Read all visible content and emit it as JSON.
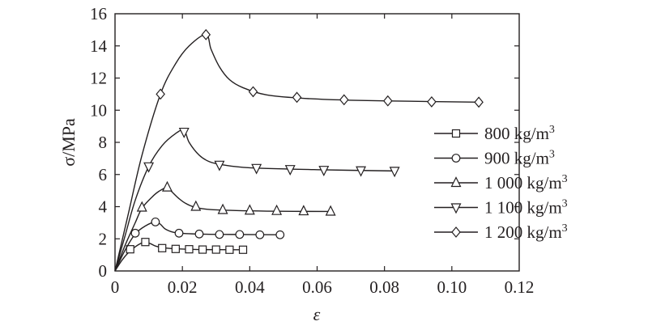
{
  "chart_data": {
    "type": "line",
    "xlabel": "ε",
    "ylabel": "σ/MPa",
    "xlim": [
      0,
      0.12
    ],
    "ylim": [
      0,
      16
    ],
    "xticks": [
      0,
      0.02,
      0.04,
      0.06,
      0.08,
      0.1,
      0.12
    ],
    "xtick_labels": [
      "0",
      "0.02",
      "0.04",
      "0.06",
      "0.08",
      "0.10",
      "0.12"
    ],
    "yticks": [
      0,
      2,
      4,
      6,
      8,
      10,
      12,
      14,
      16
    ],
    "ytick_labels": [
      "0",
      "2",
      "4",
      "6",
      "8",
      "10",
      "12",
      "14",
      "16"
    ],
    "grid": false,
    "legend_position": "right",
    "series": [
      {
        "name": "800 kg/m",
        "superscript": "3",
        "marker": "square",
        "curve": [
          [
            0,
            0
          ],
          [
            0.002,
            0.65
          ],
          [
            0.004,
            1.15
          ],
          [
            0.006,
            1.5
          ],
          [
            0.0075,
            1.7
          ],
          [
            0.009,
            1.8
          ],
          [
            0.0105,
            1.7
          ],
          [
            0.012,
            1.55
          ],
          [
            0.014,
            1.45
          ],
          [
            0.018,
            1.38
          ],
          [
            0.025,
            1.33
          ],
          [
            0.038,
            1.32
          ]
        ],
        "markers": [
          [
            0.0045,
            1.35
          ],
          [
            0.009,
            1.8
          ],
          [
            0.014,
            1.42
          ],
          [
            0.018,
            1.37
          ],
          [
            0.022,
            1.35
          ],
          [
            0.026,
            1.33
          ],
          [
            0.03,
            1.33
          ],
          [
            0.034,
            1.32
          ],
          [
            0.038,
            1.32
          ]
        ]
      },
      {
        "name": "900 kg/m",
        "superscript": "3",
        "marker": "circle",
        "curve": [
          [
            0,
            0
          ],
          [
            0.003,
            1.3
          ],
          [
            0.006,
            2.3
          ],
          [
            0.009,
            2.8
          ],
          [
            0.012,
            3.05
          ],
          [
            0.0135,
            2.9
          ],
          [
            0.015,
            2.6
          ],
          [
            0.018,
            2.38
          ],
          [
            0.024,
            2.3
          ],
          [
            0.035,
            2.27
          ],
          [
            0.05,
            2.25
          ]
        ],
        "markers": [
          [
            0.006,
            2.35
          ],
          [
            0.012,
            3.05
          ],
          [
            0.019,
            2.35
          ],
          [
            0.025,
            2.3
          ],
          [
            0.031,
            2.27
          ],
          [
            0.037,
            2.27
          ],
          [
            0.043,
            2.25
          ],
          [
            0.049,
            2.25
          ]
        ]
      },
      {
        "name": "1 000 kg/m",
        "superscript": "3",
        "marker": "triangle-up",
        "curve": [
          [
            0,
            0
          ],
          [
            0.003,
            1.6
          ],
          [
            0.006,
            3.0
          ],
          [
            0.008,
            3.9
          ],
          [
            0.011,
            4.6
          ],
          [
            0.013,
            4.95
          ],
          [
            0.0155,
            5.2
          ],
          [
            0.017,
            4.9
          ],
          [
            0.019,
            4.5
          ],
          [
            0.021,
            4.2
          ],
          [
            0.024,
            3.95
          ],
          [
            0.03,
            3.8
          ],
          [
            0.045,
            3.72
          ],
          [
            0.064,
            3.7
          ]
        ],
        "markers": [
          [
            0.008,
            3.95
          ],
          [
            0.0155,
            5.2
          ],
          [
            0.024,
            4.0
          ],
          [
            0.032,
            3.8
          ],
          [
            0.04,
            3.76
          ],
          [
            0.048,
            3.74
          ],
          [
            0.056,
            3.72
          ],
          [
            0.064,
            3.7
          ]
        ]
      },
      {
        "name": "1 100 kg/m",
        "superscript": "3",
        "marker": "triangle-down",
        "curve": [
          [
            0,
            0
          ],
          [
            0.003,
            2.2
          ],
          [
            0.006,
            4.4
          ],
          [
            0.01,
            6.5
          ],
          [
            0.014,
            7.8
          ],
          [
            0.018,
            8.55
          ],
          [
            0.0205,
            8.75
          ],
          [
            0.022,
            8.0
          ],
          [
            0.025,
            7.2
          ],
          [
            0.028,
            6.8
          ],
          [
            0.032,
            6.6
          ],
          [
            0.04,
            6.42
          ],
          [
            0.06,
            6.3
          ],
          [
            0.083,
            6.22
          ]
        ],
        "markers": [
          [
            0.01,
            6.5
          ],
          [
            0.0205,
            8.65
          ],
          [
            0.031,
            6.6
          ],
          [
            0.042,
            6.4
          ],
          [
            0.052,
            6.33
          ],
          [
            0.062,
            6.28
          ],
          [
            0.073,
            6.25
          ],
          [
            0.083,
            6.22
          ]
        ]
      },
      {
        "name": "1 200 kg/m",
        "superscript": "3",
        "marker": "diamond",
        "curve": [
          [
            0,
            0
          ],
          [
            0.004,
            3.6
          ],
          [
            0.008,
            7.2
          ],
          [
            0.0135,
            11.0
          ],
          [
            0.018,
            12.9
          ],
          [
            0.022,
            14.0
          ],
          [
            0.027,
            14.7
          ],
          [
            0.0285,
            13.8
          ],
          [
            0.031,
            12.7
          ],
          [
            0.034,
            11.9
          ],
          [
            0.038,
            11.4
          ],
          [
            0.045,
            10.95
          ],
          [
            0.055,
            10.75
          ],
          [
            0.07,
            10.62
          ],
          [
            0.09,
            10.55
          ],
          [
            0.108,
            10.5
          ]
        ],
        "markers": [
          [
            0.0135,
            11.0
          ],
          [
            0.027,
            14.7
          ],
          [
            0.041,
            11.15
          ],
          [
            0.054,
            10.8
          ],
          [
            0.068,
            10.65
          ],
          [
            0.081,
            10.58
          ],
          [
            0.094,
            10.52
          ],
          [
            0.108,
            10.5
          ]
        ]
      }
    ]
  }
}
